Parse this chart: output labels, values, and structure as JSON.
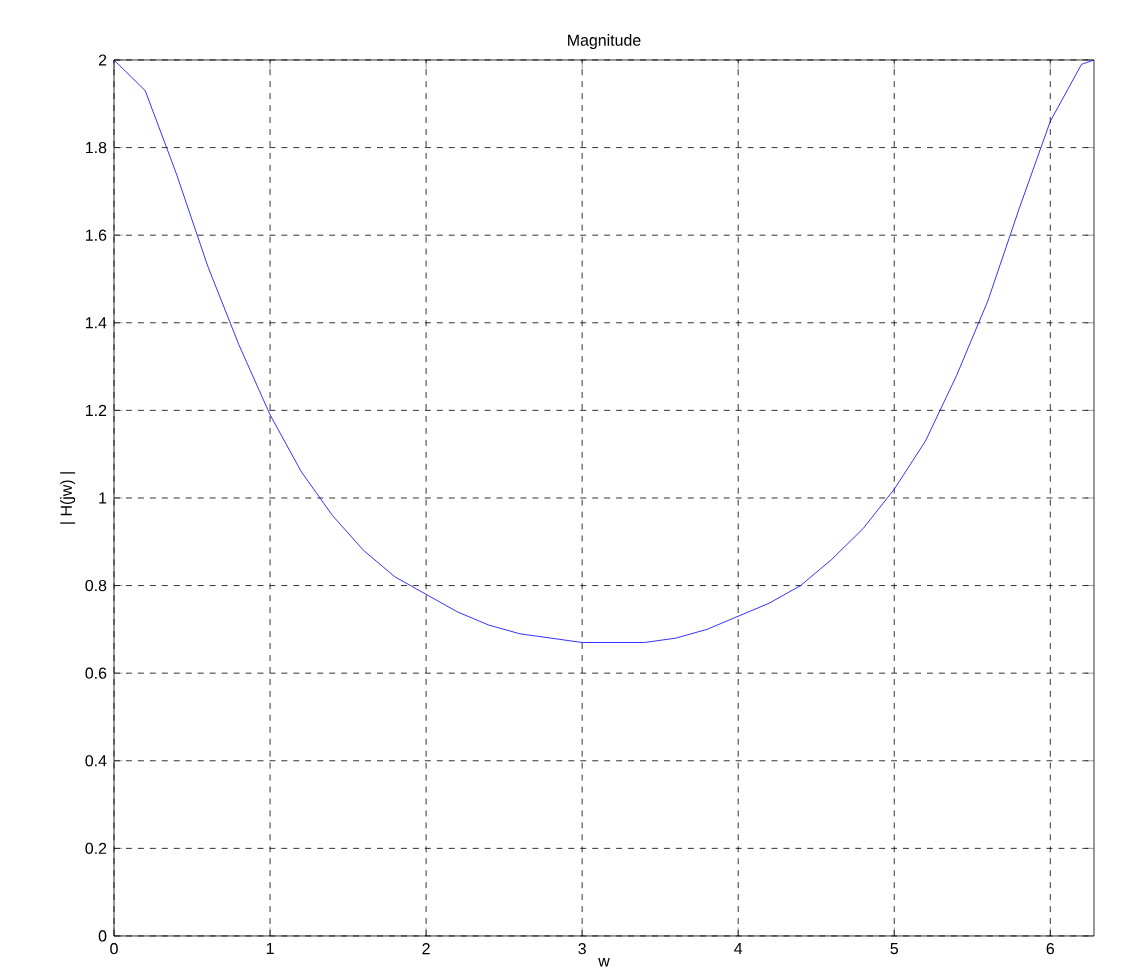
{
  "chart_data": {
    "type": "line",
    "title": "Magnitude",
    "xlabel": "w",
    "ylabel": "| H(jw) |",
    "x": [
      0,
      0.2,
      0.4,
      0.6,
      0.8,
      1.0,
      1.2,
      1.4,
      1.6,
      1.8,
      2.0,
      2.2,
      2.4,
      2.6,
      2.8,
      3.0,
      3.2,
      3.4,
      3.6,
      3.8,
      4.0,
      4.2,
      4.4,
      4.6,
      4.8,
      5.0,
      5.2,
      5.4,
      5.6,
      5.8,
      6.0,
      6.2,
      6.28
    ],
    "series": [
      {
        "color": "#0000ff",
        "values": [
          2.0,
          1.93,
          1.74,
          1.53,
          1.35,
          1.19,
          1.06,
          0.96,
          0.88,
          0.82,
          0.78,
          0.74,
          0.71,
          0.69,
          0.68,
          0.67,
          0.67,
          0.67,
          0.68,
          0.7,
          0.73,
          0.76,
          0.8,
          0.86,
          0.93,
          1.02,
          1.13,
          1.28,
          1.45,
          1.66,
          1.86,
          1.99,
          2.0
        ]
      }
    ],
    "xlim": [
      0,
      6.28
    ],
    "ylim": [
      0,
      2
    ],
    "xticks": [
      0,
      1,
      2,
      3,
      4,
      5,
      6
    ],
    "yticks": [
      0,
      0.2,
      0.4,
      0.6,
      0.8,
      1,
      1.2,
      1.4,
      1.6,
      1.8,
      2
    ],
    "grid": true,
    "marker": "none",
    "line_style": "solid"
  }
}
